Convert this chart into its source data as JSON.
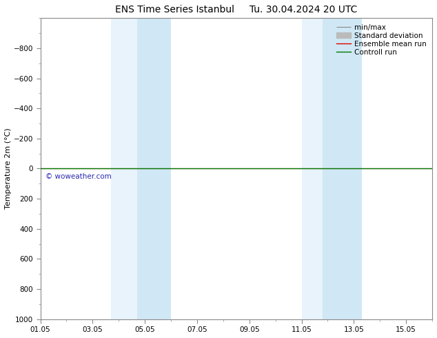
{
  "title": "ENS Time Series Istanbul",
  "title2": "Tu. 30.04.2024 20 UTC",
  "ylabel": "Temperature 2m (°C)",
  "background_color": "#ffffff",
  "plot_bg_color": "#ffffff",
  "ylim_bottom": 1000,
  "ylim_top": -1000,
  "yticks": [
    -800,
    -600,
    -400,
    -200,
    0,
    200,
    400,
    600,
    800,
    1000
  ],
  "xtick_labels": [
    "01.05",
    "03.05",
    "05.05",
    "07.05",
    "09.05",
    "11.05",
    "13.05",
    "15.05"
  ],
  "xtick_days": [
    1,
    3,
    5,
    7,
    9,
    11,
    13,
    15
  ],
  "x_min_day": 1,
  "x_max_day": 16,
  "shaded_bands": [
    {
      "x_start": 3.7,
      "x_end": 4.7
    },
    {
      "x_start": 4.7,
      "x_end": 6.0
    },
    {
      "x_start": 11.0,
      "x_end": 11.7
    },
    {
      "x_start": 11.7,
      "x_end": 13.3
    }
  ],
  "shade_color": "#daeaf5",
  "green_line_y": 0,
  "red_line_y": 0,
  "watermark": "© woweather.com",
  "watermark_color": "#1111aa",
  "legend_labels": [
    "min/max",
    "Standard deviation",
    "Ensemble mean run",
    "Controll run"
  ],
  "legend_colors": [
    "#888888",
    "#bbbbbb",
    "#dd0000",
    "#007700"
  ],
  "title_fontsize": 10,
  "axis_label_fontsize": 8,
  "tick_fontsize": 7.5,
  "legend_fontsize": 7.5
}
